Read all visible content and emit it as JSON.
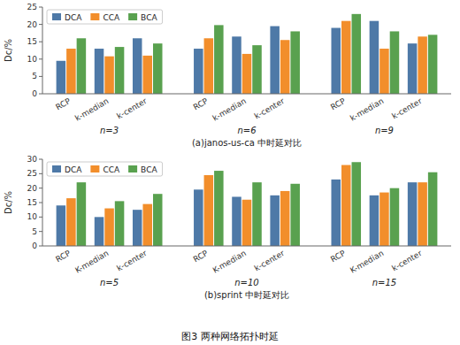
{
  "title": "图3  两种网络拓扑时延",
  "chart_data": [
    {
      "type": "bar",
      "title": "(a)janos-us-ca 中时延对比",
      "ylabel": "Dc/%",
      "ylim": [
        0,
        25
      ],
      "yticks": [
        0,
        5,
        10,
        15,
        20,
        25
      ],
      "groups": [
        "n=3",
        "n=6",
        "n=9"
      ],
      "categories": [
        "RCP",
        "k-median",
        "k-center",
        "RCP",
        "k-median",
        "k-center",
        "RCP",
        "k-median",
        "k-center"
      ],
      "series": [
        {
          "name": "DCA",
          "values": [
            9.5,
            13.0,
            16.0,
            13.0,
            16.5,
            19.5,
            19.0,
            21.0,
            14.5
          ]
        },
        {
          "name": "CCA",
          "values": [
            13.0,
            10.8,
            11.0,
            16.0,
            11.5,
            15.5,
            21.0,
            13.0,
            16.5
          ]
        },
        {
          "name": "BCA",
          "values": [
            16.0,
            13.5,
            14.5,
            19.8,
            14.0,
            18.0,
            23.0,
            18.0,
            17.0
          ]
        }
      ],
      "legend": "upper left",
      "grid": false
    },
    {
      "type": "bar",
      "title": "(b)sprint 中时延对比",
      "ylabel": "Dc/%",
      "ylim": [
        0,
        30
      ],
      "yticks": [
        0,
        5,
        10,
        15,
        20,
        25,
        30
      ],
      "groups": [
        "n=5",
        "n=10",
        "n=15"
      ],
      "categories": [
        "RCP",
        "K-median",
        "k-center",
        "RCP",
        "K-median",
        "k-center",
        "RCP",
        "K-median",
        "k-center"
      ],
      "series": [
        {
          "name": "DCA",
          "values": [
            14.0,
            10.0,
            12.5,
            19.5,
            17.0,
            17.5,
            23.0,
            17.5,
            22.0
          ]
        },
        {
          "name": "CCA",
          "values": [
            16.5,
            13.0,
            14.5,
            24.5,
            16.0,
            19.0,
            28.0,
            18.5,
            22.0
          ]
        },
        {
          "name": "BCA",
          "values": [
            22.0,
            15.5,
            18.0,
            26.0,
            22.0,
            21.5,
            29.0,
            20.0,
            25.5
          ]
        }
      ],
      "legend": "upper left",
      "grid": false
    }
  ]
}
